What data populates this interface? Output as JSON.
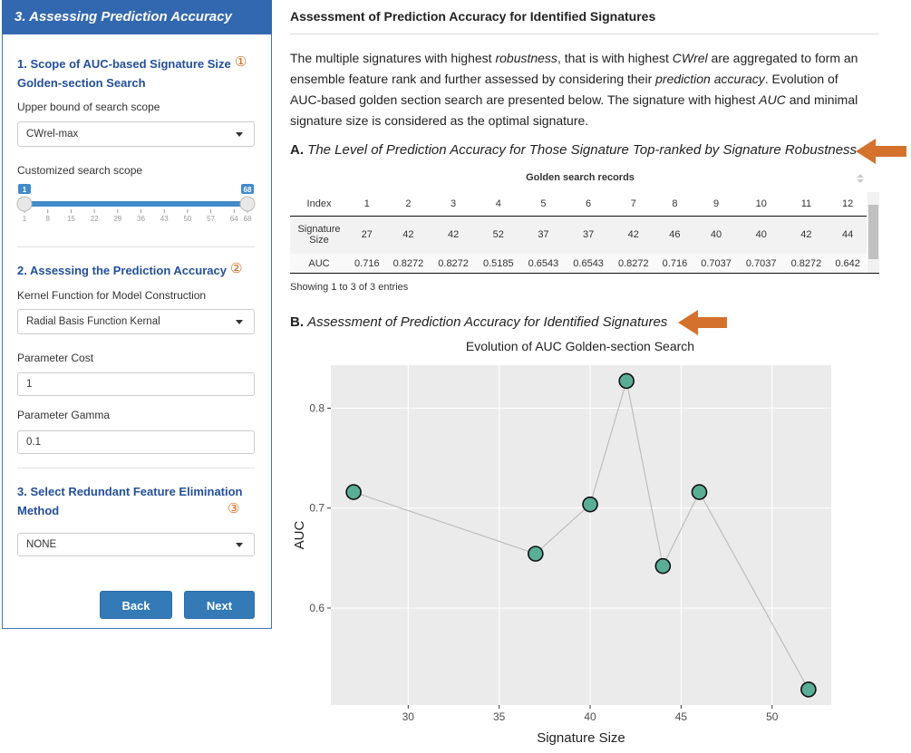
{
  "sidebar": {
    "title": "3. Assessing Prediction Accuracy",
    "section1": {
      "heading": "1. Scope of AUC-based Signature Size Golden-section Search",
      "marker": "①",
      "upper_label": "Upper bound of search scope",
      "upper_value": "CWrel-max",
      "scope_label": "Customized search scope",
      "slider": {
        "min": 1,
        "max": 68,
        "from": 1,
        "to": 68,
        "ticks": [
          1,
          8,
          15,
          22,
          29,
          36,
          43,
          50,
          57,
          64,
          68
        ]
      }
    },
    "section2": {
      "heading": "2. Assessing the Prediction Accuracy",
      "marker": "②",
      "kernel_label": "Kernel Function for Model Construction",
      "kernel_value": "Radial Basis Function Kernal",
      "cost_label": "Parameter Cost",
      "cost_value": "1",
      "gamma_label": "Parameter Gamma",
      "gamma_value": "0.1"
    },
    "section3": {
      "heading": "3. Select Redundant Feature Elimination Method",
      "marker": "③",
      "method_value": "NONE"
    },
    "buttons": [
      "Back",
      "Next"
    ]
  },
  "main": {
    "title": "Assessment of Prediction Accuracy for Identified Signatures",
    "intro": [
      {
        "text": "The multiple signatures with highest ",
        "italic": false
      },
      {
        "text": "robustness",
        "italic": true
      },
      {
        "text": ", that is with highest ",
        "italic": false
      },
      {
        "text": "CWrel",
        "italic": true
      },
      {
        "text": " are aggregated to form an ensemble feature rank and further assessed by considering their ",
        "italic": false
      },
      {
        "text": "prediction accuracy",
        "italic": true
      },
      {
        "text": ". Evolution of AUC-based golden section search are presented below. The signature with highest ",
        "italic": false
      },
      {
        "text": "AUC",
        "italic": true
      },
      {
        "text": " and minimal signature size is considered as the optimal signature.",
        "italic": false
      }
    ],
    "section_a": {
      "label": "A.",
      "title": "The Level of Prediction Accuracy for Those Signature Top-ranked by Signature Robustness"
    },
    "table": {
      "caption": "Golden search records",
      "rows": [
        [
          "Index",
          "1",
          "2",
          "3",
          "4",
          "5",
          "6",
          "7",
          "8",
          "9",
          "10",
          "11",
          "12"
        ],
        [
          "Signature Size",
          "27",
          "42",
          "42",
          "52",
          "37",
          "37",
          "42",
          "46",
          "40",
          "40",
          "42",
          "44"
        ],
        [
          "AUC",
          "0.716",
          "0.8272",
          "0.8272",
          "0.5185",
          "0.6543",
          "0.6543",
          "0.8272",
          "0.716",
          "0.7037",
          "0.7037",
          "0.8272",
          "0.642"
        ]
      ],
      "info": "Showing 1 to 3 of 3 entries"
    },
    "section_b": {
      "label": "B.",
      "title": "Assessment of Prediction Accuracy for Identified Signatures"
    }
  },
  "chart_data": {
    "type": "line",
    "title": "Evolution of AUC Golden-section Search",
    "x_label": "Signature Size",
    "y_label": "AUC",
    "x": [
      27,
      37,
      40,
      42,
      44,
      46,
      52
    ],
    "values": [
      0.716,
      0.6543,
      0.7037,
      0.8272,
      0.642,
      0.716,
      0.5185
    ],
    "xlim": [
      25.75,
      53.25
    ],
    "ylim": [
      0.503,
      0.843
    ],
    "xticks": [
      30,
      35,
      40,
      45,
      50
    ],
    "yticks": [
      0.6,
      0.7,
      0.8
    ],
    "grid": true,
    "color": "#5aae96",
    "line_color": "#bdbdbd"
  }
}
